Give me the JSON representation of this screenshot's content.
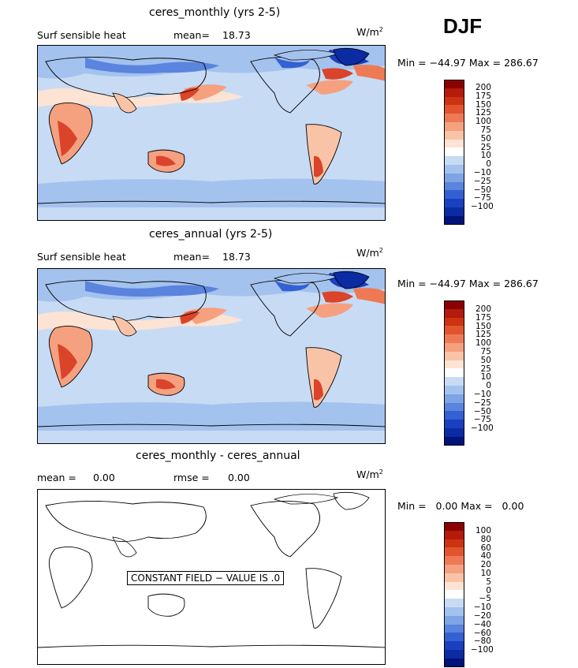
{
  "season": "DJF",
  "units_prefix": "W/m",
  "units_exp": "2",
  "panels": [
    {
      "title": "ceres_monthly (yrs 2-5)",
      "subtitle_left": "Surf sensible heat",
      "stat_label": "mean=",
      "stat_value": "18.73",
      "minmax": "Min = −44.97 Max = 286.67",
      "levels": [
        "200",
        "175",
        "150",
        "125",
        "100",
        "75",
        "50",
        "25",
        "10",
        "0",
        "−10",
        "−25",
        "−50",
        "−75",
        "−100"
      ]
    },
    {
      "title": "ceres_annual (yrs 2-5)",
      "subtitle_left": "Surf sensible heat",
      "stat_label": "mean=",
      "stat_value": "18.73",
      "minmax": "Min = −44.97 Max = 286.67",
      "levels": [
        "200",
        "175",
        "150",
        "125",
        "100",
        "75",
        "50",
        "25",
        "10",
        "0",
        "−10",
        "−25",
        "−50",
        "−75",
        "−100"
      ]
    },
    {
      "title": "ceres_monthly - ceres_annual",
      "mean_label": "mean =",
      "mean_value": "0.00",
      "rmse_label": "rmse =",
      "rmse_value": "0.00",
      "minmax": "Min =   0.00 Max =   0.00",
      "constant_text": "CONSTANT FIELD − VALUE IS .0",
      "levels": [
        "100",
        "80",
        "60",
        "40",
        "20",
        "10",
        "5",
        "0",
        "−5",
        "−10",
        "−20",
        "−40",
        "−60",
        "−80",
        "−100"
      ]
    }
  ],
  "colors": {
    "scale": [
      "#8b0000",
      "#b31b0b",
      "#cc3311",
      "#e0552e",
      "#ee7a55",
      "#f5a07f",
      "#f9c3a8",
      "#fde3d3",
      "#ffffff",
      "#c7dbf5",
      "#a4c2ee",
      "#7ea4e6",
      "#5a84dd",
      "#3461d2",
      "#1a3fbf",
      "#0b2ba3",
      "#00137a"
    ],
    "ocean_light": "#c7dbf5",
    "ocean_mid": "#a4c2ee",
    "ocean_dark": "#5a84dd",
    "warm_light": "#fde3d3",
    "warm_mid": "#f5a07f",
    "warm_strong": "#d9442a"
  }
}
